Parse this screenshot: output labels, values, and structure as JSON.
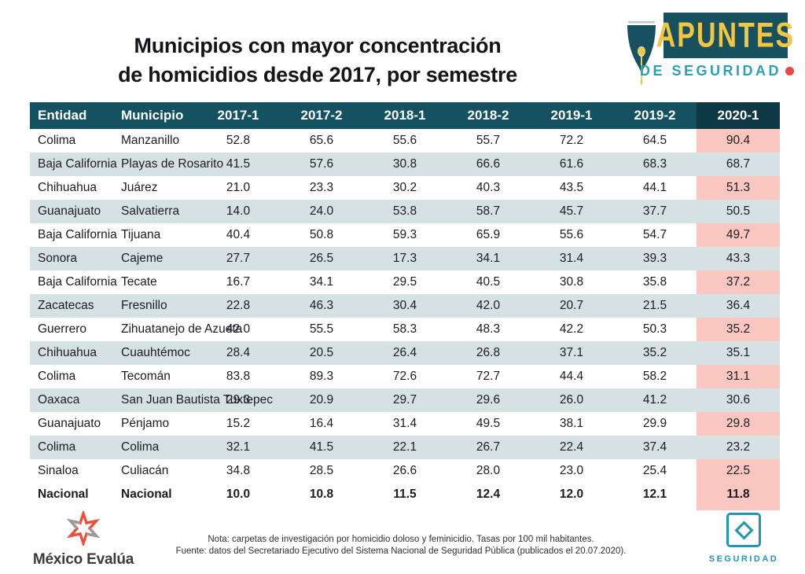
{
  "page": {
    "title_line1": "Municipios con mayor concentración",
    "title_line2": "de homicidios desde 2017, por semestre"
  },
  "logo": {
    "main": "APUNTES",
    "sub": "DE SEGURIDAD"
  },
  "chart_data": {
    "type": "table",
    "title": "Municipios con mayor concentración de homicidios desde 2017, por semestre",
    "unit": "Tasas por 100 mil habitantes",
    "highlight_column": "2020-1",
    "columns": [
      "Entidad",
      "Municipio",
      "2017-1",
      "2017-2",
      "2018-1",
      "2018-2",
      "2019-1",
      "2019-2",
      "2020-1"
    ],
    "rows": [
      {
        "entidad": "Colima",
        "municipio": "Manzanillo",
        "values": [
          52.8,
          65.6,
          55.6,
          55.7,
          72.2,
          64.5,
          90.4
        ]
      },
      {
        "entidad": "Baja California",
        "municipio": "Playas de Rosarito",
        "values": [
          41.5,
          57.6,
          30.8,
          66.6,
          61.6,
          68.3,
          68.7
        ]
      },
      {
        "entidad": "Chihuahua",
        "municipio": "Juárez",
        "values": [
          21.0,
          23.3,
          30.2,
          40.3,
          43.5,
          44.1,
          51.3
        ]
      },
      {
        "entidad": "Guanajuato",
        "municipio": "Salvatierra",
        "values": [
          14.0,
          24.0,
          53.8,
          58.7,
          45.7,
          37.7,
          50.5
        ]
      },
      {
        "entidad": "Baja California",
        "municipio": "Tijuana",
        "values": [
          40.4,
          50.8,
          59.3,
          65.9,
          55.6,
          54.7,
          49.7
        ]
      },
      {
        "entidad": "Sonora",
        "municipio": "Cajeme",
        "values": [
          27.7,
          26.5,
          17.3,
          34.1,
          31.4,
          39.3,
          43.3
        ]
      },
      {
        "entidad": "Baja California",
        "municipio": "Tecate",
        "values": [
          16.7,
          34.1,
          29.5,
          40.5,
          30.8,
          35.8,
          37.2
        ]
      },
      {
        "entidad": "Zacatecas",
        "municipio": "Fresnillo",
        "values": [
          22.8,
          46.3,
          30.4,
          42.0,
          20.7,
          21.5,
          36.4
        ]
      },
      {
        "entidad": "Guerrero",
        "municipio": "Zihuatanejo de Azueta",
        "values": [
          42.0,
          55.5,
          58.3,
          48.3,
          42.2,
          50.3,
          35.2
        ]
      },
      {
        "entidad": "Chihuahua",
        "municipio": "Cuauhtémoc",
        "values": [
          28.4,
          20.5,
          26.4,
          26.8,
          37.1,
          35.2,
          35.1
        ]
      },
      {
        "entidad": "Colima",
        "municipio": "Tecomán",
        "values": [
          83.8,
          89.3,
          72.6,
          72.7,
          44.4,
          58.2,
          31.1
        ]
      },
      {
        "entidad": "Oaxaca",
        "municipio": "San Juan Bautista Tuxtepec",
        "values": [
          29.3,
          20.9,
          29.7,
          29.6,
          26.0,
          41.2,
          30.6
        ]
      },
      {
        "entidad": "Guanajuato",
        "municipio": "Pénjamo",
        "values": [
          15.2,
          16.4,
          31.4,
          49.5,
          38.1,
          29.9,
          29.8
        ]
      },
      {
        "entidad": "Colima",
        "municipio": "Colima",
        "values": [
          32.1,
          41.5,
          22.1,
          26.7,
          22.4,
          37.4,
          23.2
        ]
      },
      {
        "entidad": "Sinaloa",
        "municipio": "Culiacán",
        "values": [
          34.8,
          28.5,
          26.6,
          28.0,
          23.0,
          25.4,
          22.5
        ]
      },
      {
        "entidad": "Nacional",
        "municipio": "Nacional",
        "values": [
          10.0,
          10.8,
          11.5,
          12.4,
          12.0,
          12.1,
          11.8
        ],
        "bold": true
      }
    ]
  },
  "footer": {
    "brand": "México Evalúa",
    "note_line1": "Nota: carpetas de investigación por homicidio doloso y feminicidio. Tasas por 100 mil habitantes.",
    "note_line2": "Fuente: datos del Secretariado Ejecutivo del Sistema Nacional de Seguridad Pública (publicados el 20.07.2020).",
    "badge": "SEGURIDAD"
  },
  "colors": {
    "header_teal": "#155261",
    "header_dark": "#0f3845",
    "row_stripe": "#d6e1e4",
    "highlight_pink": "#f9c6c0",
    "highlight_pink_striped": "#d5b5b8",
    "logo_yellow": "#f2c643",
    "logo_teal": "#17505e",
    "accent_teal": "#2ea0b4",
    "accent_red": "#e8463e",
    "brand_orange": "#ee4f38",
    "brand_gray": "#9a9a9a"
  }
}
